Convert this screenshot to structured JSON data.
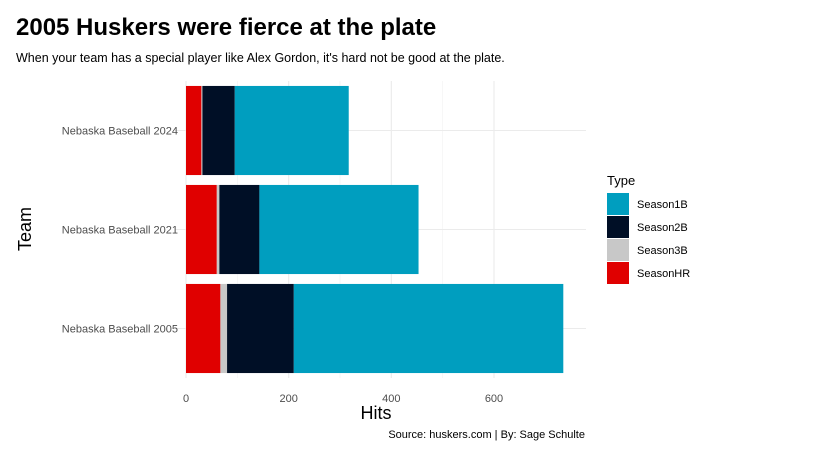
{
  "title": "2005 Huskers were fierce at the plate",
  "subtitle": "When your team has a special player like Alex Gordon, it's hard not be good at the plate.",
  "caption": "Source: huskers.com | By: Sage Schulte",
  "chart_data": {
    "type": "bar",
    "orientation": "horizontal",
    "stacked": true,
    "categories": [
      "Nebaska Baseball 2005",
      "Nebaska Baseball 2021",
      "Nebaska Baseball 2024"
    ],
    "series": [
      {
        "name": "SeasonHR",
        "color": "#e00000",
        "values": [
          67,
          60,
          30
        ]
      },
      {
        "name": "Season3B",
        "color": "#c8c8c8",
        "values": [
          13,
          5,
          2
        ]
      },
      {
        "name": "Season2B",
        "color": "#000f26",
        "values": [
          130,
          78,
          63
        ]
      },
      {
        "name": "Season1B",
        "color": "#009ebf",
        "values": [
          525,
          310,
          222
        ]
      }
    ],
    "xlabel": "Hits",
    "ylabel": "Team",
    "xlim": [
      0,
      770
    ],
    "xticks": [
      0,
      200,
      400,
      600
    ],
    "legend": {
      "title": "Type",
      "position": "right",
      "order": [
        "Season1B",
        "Season2B",
        "Season3B",
        "SeasonHR"
      ]
    },
    "grid": true
  }
}
